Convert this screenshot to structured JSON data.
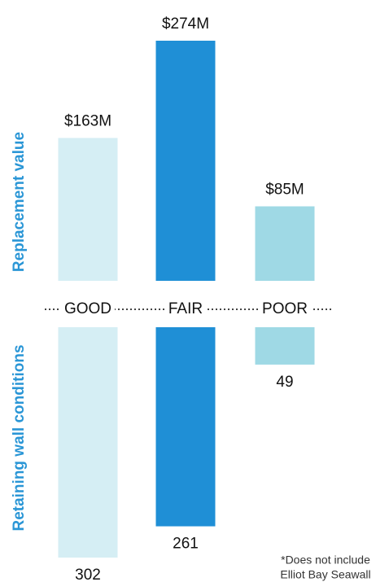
{
  "chart_data": {
    "type": "butterfly",
    "categories": [
      "GOOD",
      "FAIR",
      "POOR"
    ],
    "colors": [
      "#d5eef4",
      "#1f8fd6",
      "#9fd9e5"
    ],
    "series": [
      {
        "name": "Replacement value",
        "values": [
          163,
          274,
          85
        ],
        "value_labels": [
          "$163M",
          "$274M",
          "$85M"
        ]
      },
      {
        "name": "Retaining wall conditions",
        "values": [
          302,
          261,
          49
        ]
      }
    ],
    "annotation": [
      "*Does not include",
      "Elliot Bay Seawall"
    ]
  }
}
